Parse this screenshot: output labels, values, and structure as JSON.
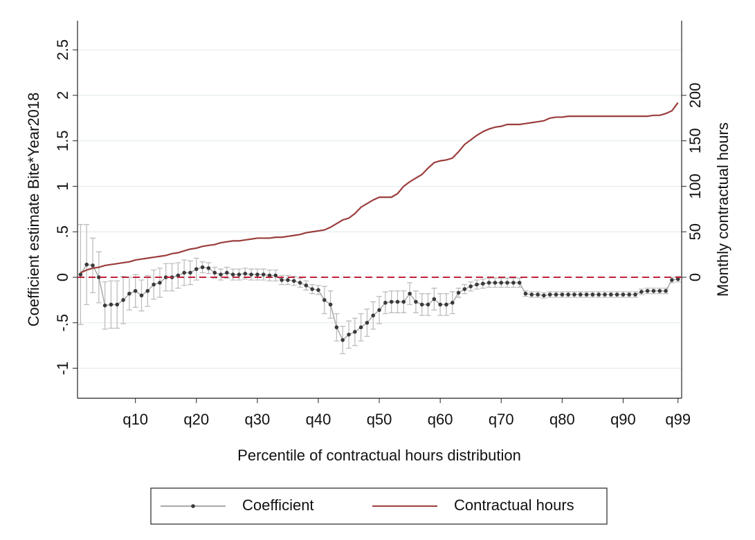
{
  "chart_data": {
    "type": "line",
    "ylabel": "Coefficient estimate Bite*Year2018",
    "y2label": "Monthly contractual hours",
    "xlabel": "Percentile of contractual hours distribution",
    "x": [
      1,
      2,
      3,
      4,
      5,
      6,
      7,
      8,
      9,
      10,
      11,
      12,
      13,
      14,
      15,
      16,
      17,
      18,
      19,
      20,
      21,
      22,
      23,
      24,
      25,
      26,
      27,
      28,
      29,
      30,
      31,
      32,
      33,
      34,
      35,
      36,
      37,
      38,
      39,
      40,
      41,
      42,
      43,
      44,
      45,
      46,
      47,
      48,
      49,
      50,
      51,
      52,
      53,
      54,
      55,
      56,
      57,
      58,
      59,
      60,
      61,
      62,
      63,
      64,
      65,
      66,
      67,
      68,
      69,
      70,
      71,
      72,
      73,
      74,
      75,
      76,
      77,
      78,
      79,
      80,
      81,
      82,
      83,
      84,
      85,
      86,
      87,
      88,
      89,
      90,
      91,
      92,
      93,
      94,
      95,
      96,
      97,
      98,
      99
    ],
    "xlim": [
      0.5,
      99.6
    ],
    "xticks": [
      {
        "value": 10,
        "label": "q10"
      },
      {
        "value": 20,
        "label": "q20"
      },
      {
        "value": 30,
        "label": "q30"
      },
      {
        "value": 40,
        "label": "q40"
      },
      {
        "value": 50,
        "label": "q50"
      },
      {
        "value": 60,
        "label": "q60"
      },
      {
        "value": 70,
        "label": "q70"
      },
      {
        "value": 80,
        "label": "q80"
      },
      {
        "value": 90,
        "label": "q90"
      },
      {
        "value": 99,
        "label": "q99"
      }
    ],
    "ylim": [
      -1.33,
      2.82
    ],
    "yticks": [
      {
        "value": -1,
        "label": "-1"
      },
      {
        "value": -0.5,
        "label": "-.5"
      },
      0,
      {
        "value": 0.5,
        "label": ".5"
      },
      1,
      1.5,
      2,
      2.5
    ],
    "y2lim": [
      -133,
      282
    ],
    "y2ticks": [
      0,
      50,
      100,
      150,
      200
    ],
    "grid": true,
    "hline": 0,
    "hline_color": "#c0223a",
    "legend": "bottom",
    "series": [
      {
        "name": "Coefficient",
        "color": "#3a3a3a",
        "line_color": "#a8a8a8",
        "error_color": "#bdbdbd",
        "values": [
          0.03,
          0.14,
          0.13,
          0.0,
          -0.31,
          -0.3,
          -0.3,
          -0.25,
          -0.18,
          -0.15,
          -0.2,
          -0.15,
          -0.08,
          -0.06,
          0.0,
          0.0,
          0.02,
          0.05,
          0.05,
          0.09,
          0.11,
          0.1,
          0.05,
          0.03,
          0.05,
          0.03,
          0.03,
          0.04,
          0.03,
          0.03,
          0.03,
          0.02,
          0.02,
          -0.03,
          -0.03,
          -0.04,
          -0.06,
          -0.09,
          -0.13,
          -0.14,
          -0.25,
          -0.3,
          -0.55,
          -0.69,
          -0.63,
          -0.6,
          -0.55,
          -0.5,
          -0.42,
          -0.36,
          -0.28,
          -0.27,
          -0.27,
          -0.27,
          -0.18,
          -0.27,
          -0.3,
          -0.3,
          -0.24,
          -0.3,
          -0.3,
          -0.28,
          -0.17,
          -0.13,
          -0.1,
          -0.08,
          -0.07,
          -0.06,
          -0.06,
          -0.06,
          -0.06,
          -0.06,
          -0.06,
          -0.18,
          -0.19,
          -0.19,
          -0.2,
          -0.19,
          -0.19,
          -0.19,
          -0.19,
          -0.19,
          -0.19,
          -0.19,
          -0.19,
          -0.19,
          -0.19,
          -0.19,
          -0.19,
          -0.19,
          -0.19,
          -0.19,
          -0.16,
          -0.15,
          -0.15,
          -0.15,
          -0.15,
          -0.03,
          -0.02
        ],
        "errors": [
          0.55,
          0.44,
          0.3,
          0.28,
          0.26,
          0.26,
          0.26,
          0.26,
          0.18,
          0.18,
          0.17,
          0.17,
          0.16,
          0.16,
          0.15,
          0.15,
          0.14,
          0.14,
          0.13,
          0.12,
          0.06,
          0.06,
          0.06,
          0.06,
          0.06,
          0.06,
          0.06,
          0.06,
          0.06,
          0.06,
          0.06,
          0.06,
          0.06,
          0.05,
          0.05,
          0.05,
          0.05,
          0.05,
          0.05,
          0.05,
          0.15,
          0.15,
          0.15,
          0.15,
          0.15,
          0.15,
          0.15,
          0.15,
          0.15,
          0.15,
          0.12,
          0.12,
          0.12,
          0.12,
          0.12,
          0.12,
          0.12,
          0.12,
          0.12,
          0.12,
          0.12,
          0.12,
          0.05,
          0.05,
          0.05,
          0.05,
          0.05,
          0.05,
          0.05,
          0.05,
          0.05,
          0.05,
          0.05,
          0.03,
          0.03,
          0.03,
          0.03,
          0.03,
          0.03,
          0.03,
          0.03,
          0.03,
          0.03,
          0.03,
          0.03,
          0.03,
          0.03,
          0.03,
          0.03,
          0.03,
          0.03,
          0.03,
          0.03,
          0.03,
          0.03,
          0.03,
          0.03,
          0.03,
          0.03
        ]
      },
      {
        "name": "Contractual hours",
        "color": "#9b3c3c",
        "axis": "y2",
        "values": [
          5,
          8,
          10,
          11,
          13,
          14,
          15,
          16,
          17,
          19,
          20,
          21,
          22,
          23,
          24,
          26,
          27,
          29,
          31,
          32,
          34,
          35,
          36,
          38,
          39,
          40,
          40,
          41,
          42,
          43,
          43,
          43,
          44,
          44,
          45,
          46,
          47,
          49,
          50,
          51,
          52,
          55,
          59,
          63,
          65,
          70,
          77,
          81,
          85,
          88,
          88,
          88,
          92,
          100,
          105,
          109,
          113,
          120,
          126,
          128,
          129,
          131,
          138,
          146,
          151,
          156,
          160,
          163,
          165,
          166,
          168,
          168,
          168,
          169,
          170,
          171,
          172,
          175,
          176,
          176,
          177,
          177,
          177,
          177,
          177,
          177,
          177,
          177,
          177,
          177,
          177,
          177,
          177,
          177,
          178,
          178,
          180,
          183,
          192
        ]
      }
    ]
  }
}
